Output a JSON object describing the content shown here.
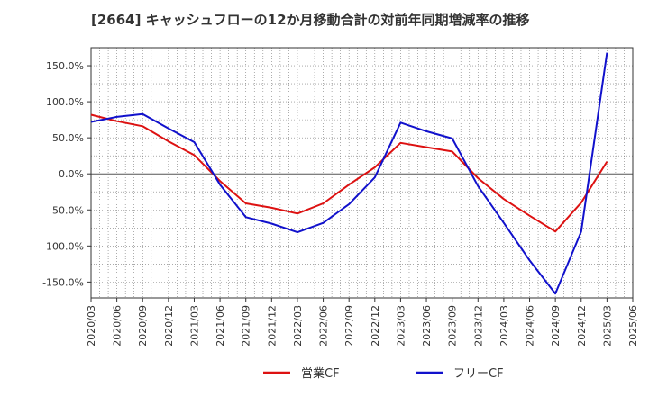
{
  "chart_data": {
    "type": "line",
    "title": "[2664]  キャッシュフローの12か月移動合計の対前年同期増減率の推移",
    "xlabel": "",
    "ylabel": "",
    "y_unit": "%",
    "ylim": [
      -172,
      175
    ],
    "yticks": [
      -150,
      -100,
      -50,
      0,
      50,
      100,
      150
    ],
    "xlim": [
      "2020/03",
      "2025/06"
    ],
    "x_tick_labels": [
      "2020/03",
      "2020/06",
      "2020/09",
      "2020/12",
      "2021/03",
      "2021/06",
      "2021/09",
      "2021/12",
      "2022/03",
      "2022/06",
      "2022/09",
      "2022/12",
      "2023/03",
      "2023/06",
      "2023/09",
      "2023/12",
      "2024/03",
      "2024/06",
      "2024/09",
      "2024/12",
      "2025/03",
      "2025/06"
    ],
    "grid": true,
    "legend_position": "bottom",
    "series": [
      {
        "name": "営業CF",
        "color": "#dd1111",
        "points": [
          [
            "2020/03",
            82
          ],
          [
            "2020/06",
            73
          ],
          [
            "2020/09",
            66
          ],
          [
            "2020/12",
            45
          ],
          [
            "2021/03",
            26
          ],
          [
            "2021/06",
            -10
          ],
          [
            "2021/09",
            -41
          ],
          [
            "2021/12",
            -47
          ],
          [
            "2022/03",
            -55
          ],
          [
            "2022/06",
            -41
          ],
          [
            "2022/09",
            -15
          ],
          [
            "2022/12",
            9
          ],
          [
            "2023/03",
            43
          ],
          [
            "2023/06",
            37
          ],
          [
            "2023/09",
            31
          ],
          [
            "2023/12",
            -6
          ],
          [
            "2024/03",
            -35
          ],
          [
            "2024/06",
            -58
          ],
          [
            "2024/09",
            -80
          ],
          [
            "2024/12",
            -40
          ],
          [
            "2025/03",
            17
          ]
        ]
      },
      {
        "name": "フリーCF",
        "color": "#1111cc",
        "points": [
          [
            "2020/03",
            72
          ],
          [
            "2020/06",
            79
          ],
          [
            "2020/09",
            83
          ],
          [
            "2020/12",
            63
          ],
          [
            "2021/03",
            44
          ],
          [
            "2021/06",
            -15
          ],
          [
            "2021/09",
            -60
          ],
          [
            "2021/12",
            -69
          ],
          [
            "2022/03",
            -81
          ],
          [
            "2022/06",
            -68
          ],
          [
            "2022/09",
            -42
          ],
          [
            "2022/12",
            -5
          ],
          [
            "2023/03",
            71
          ],
          [
            "2023/06",
            59
          ],
          [
            "2023/09",
            49
          ],
          [
            "2023/12",
            -17
          ],
          [
            "2024/03",
            -68
          ],
          [
            "2024/06",
            -120
          ],
          [
            "2024/09",
            -166
          ],
          [
            "2024/12",
            -80
          ],
          [
            "2025/03",
            168
          ]
        ]
      }
    ]
  }
}
